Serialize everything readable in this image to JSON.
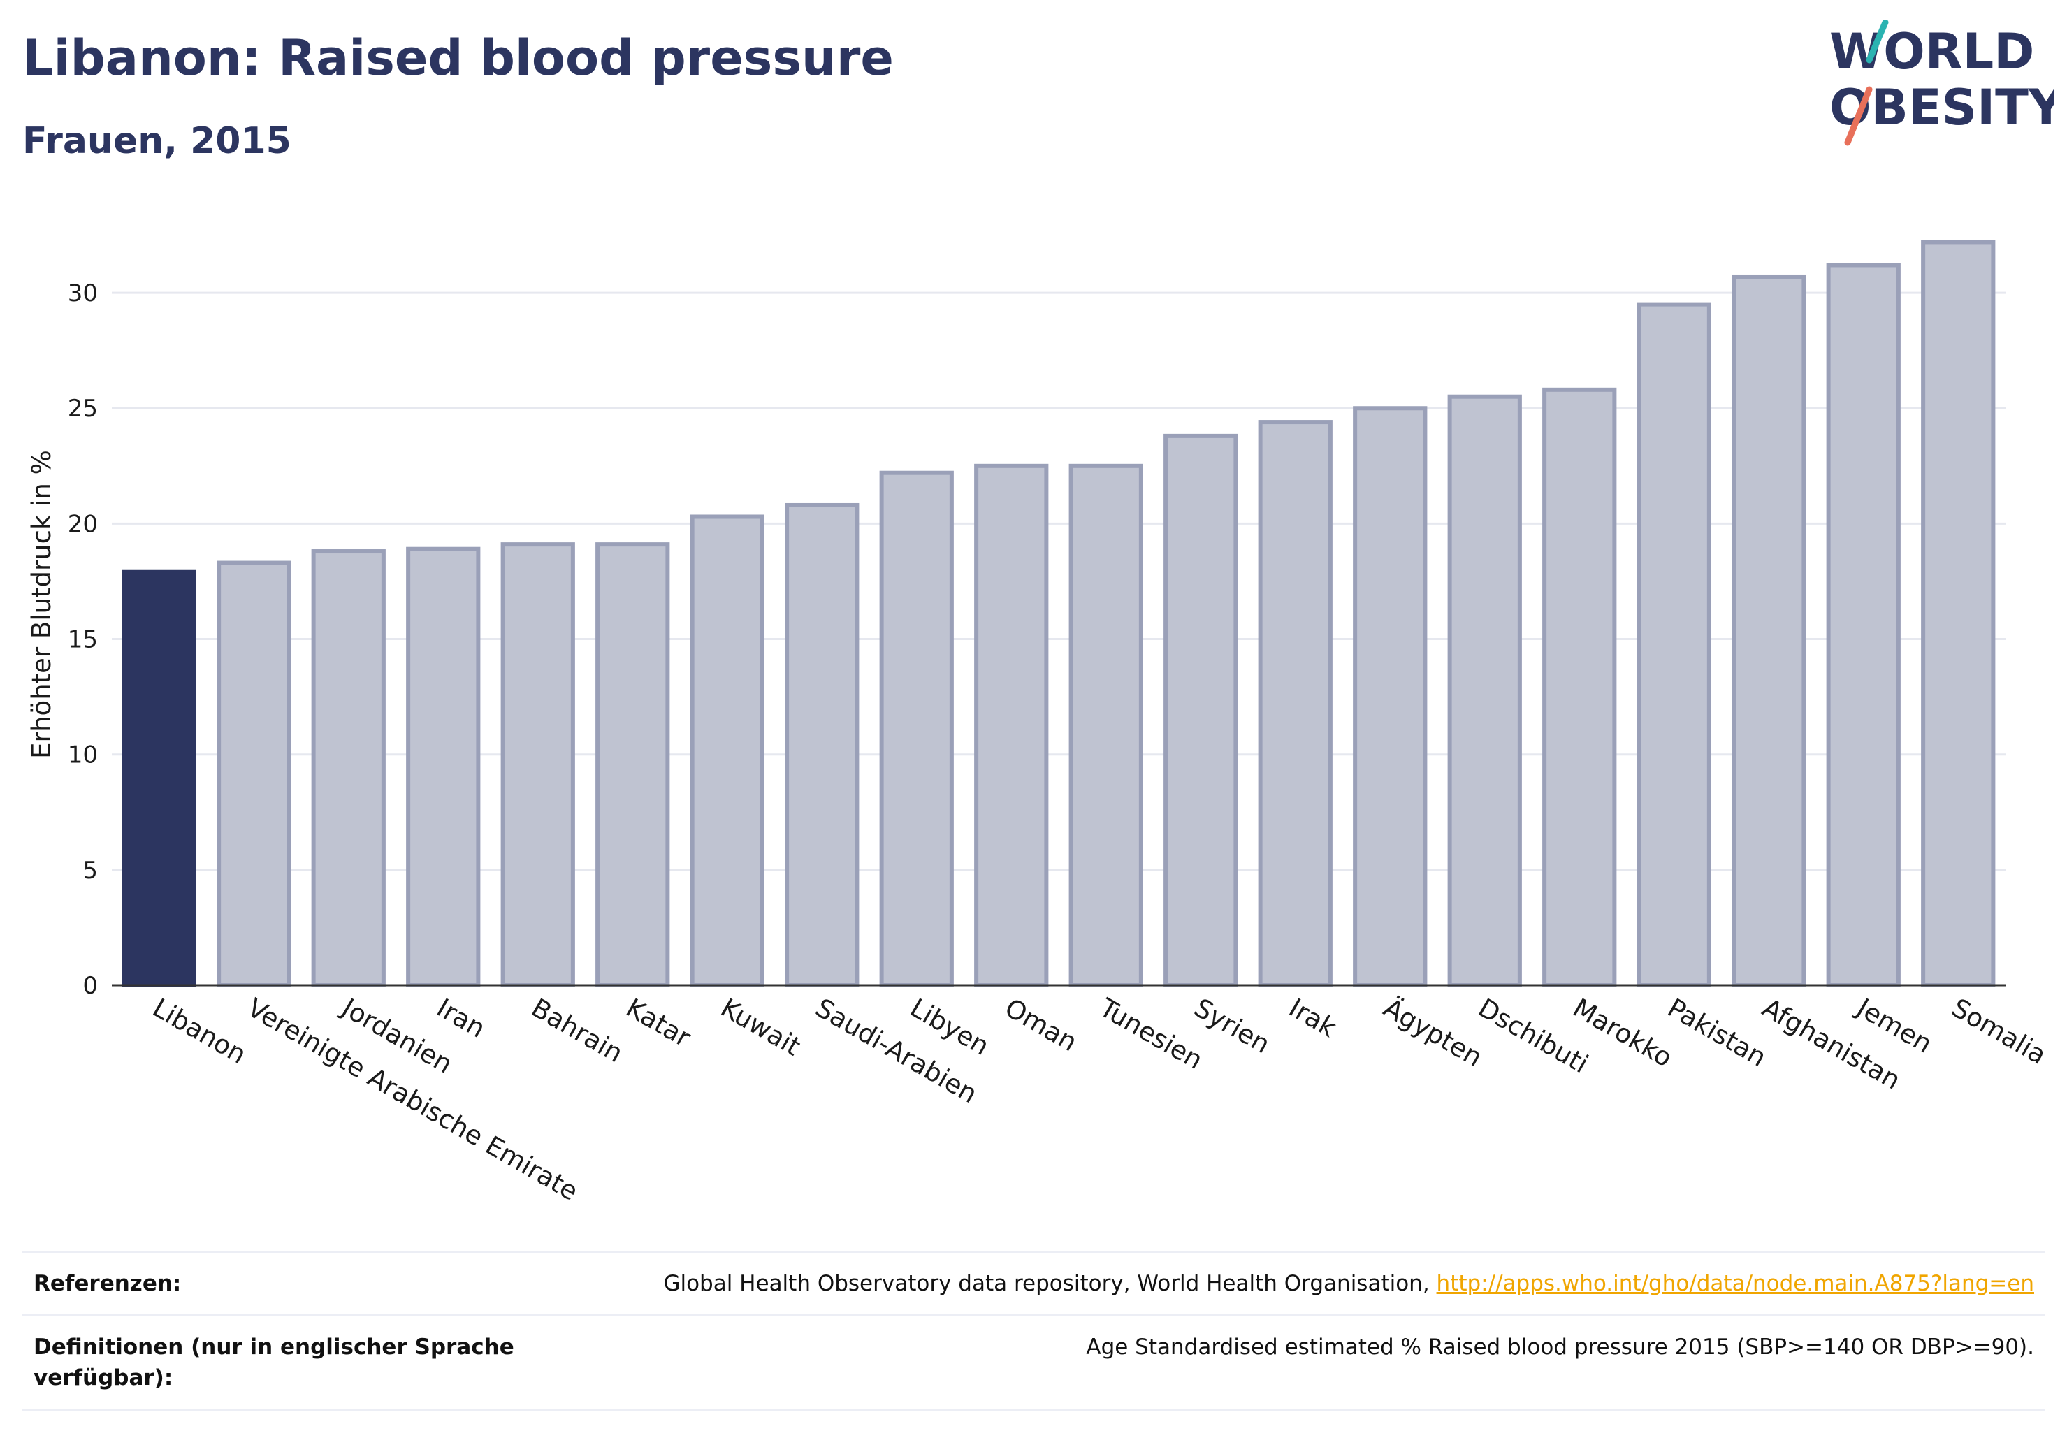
{
  "header": {
    "title": "Libanon: Raised blood pressure",
    "subtitle": "Frauen, 2015"
  },
  "logo": {
    "line1": "WORLD",
    "line2": "OBESITY"
  },
  "colors": {
    "highlight": "#2c3560",
    "bar_fill": "#bfc3d1",
    "bar_stroke": "#9aa0b8",
    "grid": "#e6e8ef",
    "accent_teal": "#2bb3b1",
    "accent_coral": "#e8705a",
    "link": "#f0a500"
  },
  "chart_data": {
    "type": "bar",
    "ylabel": "Erhöhter Blutdruck in %",
    "ylim": [
      0,
      33
    ],
    "yticks": [
      0,
      5,
      10,
      15,
      20,
      25,
      30
    ],
    "grid": true,
    "highlight_category": "Libanon",
    "categories": [
      "Libanon",
      "Vereinigte Arabische Emirate",
      "Jordanien",
      "Iran",
      "Bahrain",
      "Katar",
      "Kuwait",
      "Saudi-Arabien",
      "Libyen",
      "Oman",
      "Tunesien",
      "Syrien",
      "Irak",
      "Ägypten",
      "Dschibuti",
      "Marokko",
      "Pakistan",
      "Afghanistan",
      "Jemen",
      "Somalia"
    ],
    "values": [
      17.9,
      18.3,
      18.8,
      18.9,
      19.1,
      19.1,
      20.3,
      20.8,
      22.2,
      22.5,
      22.5,
      23.8,
      24.4,
      25.0,
      25.5,
      25.8,
      29.5,
      30.7,
      31.2,
      32.2
    ]
  },
  "references": {
    "ref_label": "Referenzen:",
    "ref_text": "Global Health Observatory data repository, World Health Organisation, ",
    "ref_link": "http://apps.who.int/gho/data/node.main.A875?lang=en",
    "def_label": "Definitionen (nur in englischer Sprache verfügbar):",
    "def_text": "Age Standardised estimated % Raised blood pressure 2015 (SBP>=140 OR DBP>=90)."
  }
}
